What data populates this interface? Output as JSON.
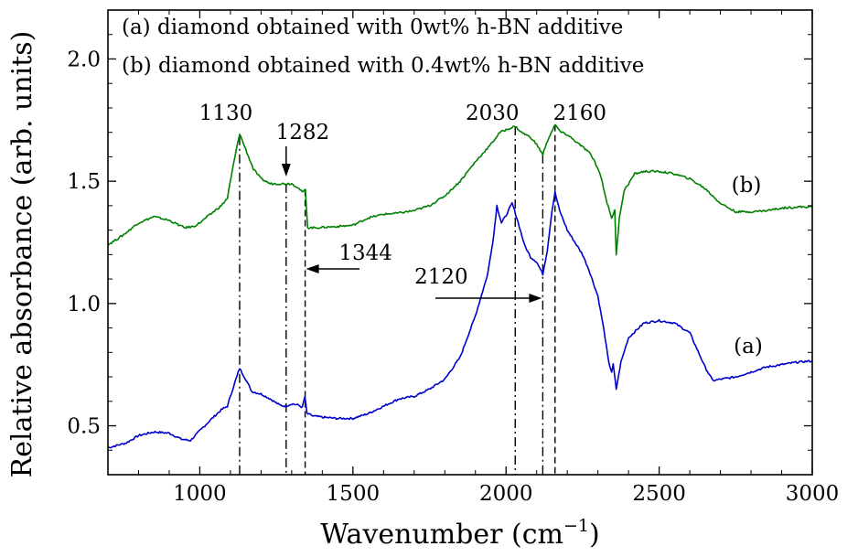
{
  "chart_data": {
    "type": "line",
    "title": "",
    "xlabel": "Wavenumber (cm",
    "xlabel_sup": "−1",
    "xlabel_close": ")",
    "ylabel": "Relative absorbance (arb. units)",
    "xlim": [
      700,
      3000
    ],
    "ylim": [
      0.3,
      2.2
    ],
    "x_ticks": [
      1000,
      1500,
      2000,
      2500,
      3000
    ],
    "x_tick_labels": [
      "1000",
      "1500",
      "2000",
      "2500",
      "3000"
    ],
    "y_ticks": [
      0.5,
      1.0,
      1.5,
      2.0
    ],
    "y_tick_labels": [
      "0.5",
      "1.0",
      "1.5",
      "2.0"
    ],
    "legend": [
      "(a) diamond obtained with 0wt% h-BN additive",
      "(b) diamond obtained with 0.4wt% h-BN additive"
    ],
    "legend_position": "top-left",
    "series": [
      {
        "label": "(a)",
        "color": "#0000cc",
        "points": [
          [
            700,
            0.41
          ],
          [
            760,
            0.43
          ],
          [
            800,
            0.46
          ],
          [
            850,
            0.475
          ],
          [
            900,
            0.47
          ],
          [
            940,
            0.445
          ],
          [
            970,
            0.44
          ],
          [
            1000,
            0.48
          ],
          [
            1040,
            0.53
          ],
          [
            1070,
            0.565
          ],
          [
            1090,
            0.58
          ],
          [
            1110,
            0.66
          ],
          [
            1130,
            0.735
          ],
          [
            1150,
            0.69
          ],
          [
            1170,
            0.64
          ],
          [
            1200,
            0.63
          ],
          [
            1230,
            0.61
          ],
          [
            1260,
            0.585
          ],
          [
            1280,
            0.58
          ],
          [
            1300,
            0.59
          ],
          [
            1320,
            0.585
          ],
          [
            1335,
            0.575
          ],
          [
            1343,
            0.62
          ],
          [
            1350,
            0.55
          ],
          [
            1370,
            0.54
          ],
          [
            1400,
            0.535
          ],
          [
            1450,
            0.53
          ],
          [
            1500,
            0.53
          ],
          [
            1550,
            0.55
          ],
          [
            1600,
            0.58
          ],
          [
            1650,
            0.61
          ],
          [
            1700,
            0.62
          ],
          [
            1750,
            0.65
          ],
          [
            1800,
            0.69
          ],
          [
            1850,
            0.78
          ],
          [
            1900,
            0.95
          ],
          [
            1940,
            1.12
          ],
          [
            1960,
            1.28
          ],
          [
            1970,
            1.4
          ],
          [
            1985,
            1.33
          ],
          [
            2000,
            1.36
          ],
          [
            2020,
            1.41
          ],
          [
            2040,
            1.33
          ],
          [
            2060,
            1.24
          ],
          [
            2080,
            1.19
          ],
          [
            2100,
            1.17
          ],
          [
            2120,
            1.12
          ],
          [
            2135,
            1.22
          ],
          [
            2150,
            1.38
          ],
          [
            2160,
            1.455
          ],
          [
            2175,
            1.38
          ],
          [
            2200,
            1.3
          ],
          [
            2230,
            1.24
          ],
          [
            2250,
            1.2
          ],
          [
            2270,
            1.14
          ],
          [
            2300,
            1.03
          ],
          [
            2320,
            0.89
          ],
          [
            2335,
            0.76
          ],
          [
            2345,
            0.72
          ],
          [
            2350,
            0.75
          ],
          [
            2360,
            0.65
          ],
          [
            2375,
            0.76
          ],
          [
            2400,
            0.86
          ],
          [
            2450,
            0.92
          ],
          [
            2500,
            0.93
          ],
          [
            2550,
            0.92
          ],
          [
            2600,
            0.88
          ],
          [
            2650,
            0.74
          ],
          [
            2675,
            0.685
          ],
          [
            2700,
            0.69
          ],
          [
            2750,
            0.7
          ],
          [
            2800,
            0.72
          ],
          [
            2850,
            0.74
          ],
          [
            2900,
            0.75
          ],
          [
            2950,
            0.76
          ],
          [
            3000,
            0.765
          ]
        ]
      },
      {
        "label": "(b)",
        "color": "#008000",
        "points": [
          [
            700,
            1.24
          ],
          [
            750,
            1.28
          ],
          [
            800,
            1.33
          ],
          [
            850,
            1.355
          ],
          [
            900,
            1.34
          ],
          [
            950,
            1.31
          ],
          [
            980,
            1.315
          ],
          [
            1000,
            1.33
          ],
          [
            1040,
            1.37
          ],
          [
            1070,
            1.4
          ],
          [
            1090,
            1.43
          ],
          [
            1110,
            1.57
          ],
          [
            1130,
            1.695
          ],
          [
            1150,
            1.63
          ],
          [
            1175,
            1.55
          ],
          [
            1200,
            1.51
          ],
          [
            1230,
            1.49
          ],
          [
            1260,
            1.49
          ],
          [
            1282,
            1.49
          ],
          [
            1300,
            1.49
          ],
          [
            1320,
            1.475
          ],
          [
            1335,
            1.455
          ],
          [
            1345,
            1.465
          ],
          [
            1352,
            1.31
          ],
          [
            1380,
            1.31
          ],
          [
            1450,
            1.315
          ],
          [
            1500,
            1.32
          ],
          [
            1550,
            1.35
          ],
          [
            1600,
            1.365
          ],
          [
            1650,
            1.37
          ],
          [
            1700,
            1.38
          ],
          [
            1750,
            1.4
          ],
          [
            1800,
            1.44
          ],
          [
            1850,
            1.5
          ],
          [
            1900,
            1.58
          ],
          [
            1950,
            1.65
          ],
          [
            1980,
            1.7
          ],
          [
            2000,
            1.71
          ],
          [
            2030,
            1.725
          ],
          [
            2050,
            1.7
          ],
          [
            2080,
            1.68
          ],
          [
            2100,
            1.65
          ],
          [
            2120,
            1.61
          ],
          [
            2140,
            1.68
          ],
          [
            2160,
            1.73
          ],
          [
            2180,
            1.7
          ],
          [
            2200,
            1.69
          ],
          [
            2240,
            1.65
          ],
          [
            2270,
            1.62
          ],
          [
            2290,
            1.58
          ],
          [
            2310,
            1.52
          ],
          [
            2330,
            1.41
          ],
          [
            2345,
            1.35
          ],
          [
            2355,
            1.38
          ],
          [
            2360,
            1.2
          ],
          [
            2370,
            1.35
          ],
          [
            2385,
            1.46
          ],
          [
            2420,
            1.53
          ],
          [
            2450,
            1.54
          ],
          [
            2500,
            1.54
          ],
          [
            2550,
            1.53
          ],
          [
            2600,
            1.51
          ],
          [
            2650,
            1.47
          ],
          [
            2700,
            1.41
          ],
          [
            2750,
            1.375
          ],
          [
            2800,
            1.375
          ],
          [
            2850,
            1.38
          ],
          [
            2900,
            1.39
          ],
          [
            2950,
            1.395
          ],
          [
            3000,
            1.395
          ]
        ]
      }
    ],
    "series_labels": [
      "(a)",
      "(b)"
    ],
    "reference_lines": [
      {
        "x": 1130,
        "style": "dash-dot"
      },
      {
        "x": 1282,
        "style": "dash-dot"
      },
      {
        "x": 1344,
        "style": "dashed"
      },
      {
        "x": 2030,
        "style": "dash-dot"
      },
      {
        "x": 2120,
        "style": "dash-dot"
      },
      {
        "x": 2160,
        "style": "dashed"
      }
    ],
    "annotations": [
      {
        "text": "1130"
      },
      {
        "text": "1282"
      },
      {
        "text": "1344"
      },
      {
        "text": "2030"
      },
      {
        "text": "2120"
      },
      {
        "text": "2160"
      }
    ],
    "grid": false
  }
}
